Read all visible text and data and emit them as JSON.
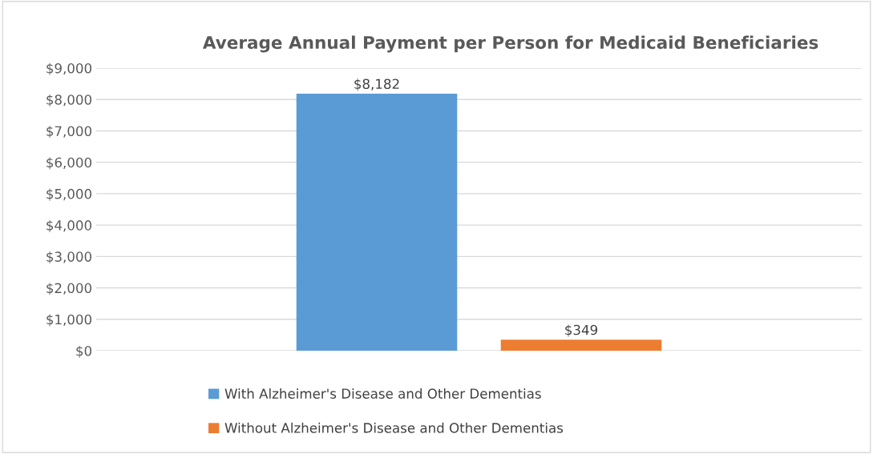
{
  "chart_data": {
    "type": "bar",
    "title": "Average Annual Payment per Person for Medicaid Beneficiaries",
    "categories": [
      null
    ],
    "series": [
      {
        "name": "With Alzheimer's Disease and Other Dementias",
        "color": "#5b9bd5",
        "values": [
          8182
        ],
        "value_labels": [
          "$8,182"
        ]
      },
      {
        "name": "Without Alzheimer's Disease and Other Dementias",
        "color": "#ed7d31",
        "values": [
          349
        ],
        "value_labels": [
          "$349"
        ]
      }
    ],
    "ylim": [
      0,
      9000
    ],
    "yticks": [
      {
        "value": 0,
        "label": "$0"
      },
      {
        "value": 1000,
        "label": "$1,000"
      },
      {
        "value": 2000,
        "label": "$2,000"
      },
      {
        "value": 3000,
        "label": "$3,000"
      },
      {
        "value": 4000,
        "label": "$4,000"
      },
      {
        "value": 5000,
        "label": "$5,000"
      },
      {
        "value": 6000,
        "label": "$6,000"
      },
      {
        "value": 7000,
        "label": "$7,000"
      },
      {
        "value": 8000,
        "label": "$8,000"
      },
      {
        "value": 9000,
        "label": "$9,000"
      }
    ],
    "grid": "y",
    "legend": "bottom"
  }
}
